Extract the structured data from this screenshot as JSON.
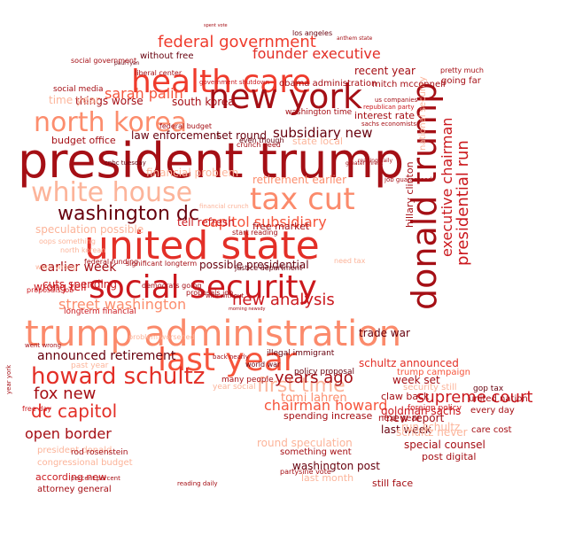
{
  "words": [
    {
      "text": "president trump",
      "color": "#a50f15"
    },
    {
      "text": "trump administration",
      "color": "#fb8a6b"
    },
    {
      "text": "united state",
      "color": "#e32f27"
    },
    {
      "text": "social security",
      "color": "#cb181d"
    },
    {
      "text": "health care",
      "color": "#ef3b2c"
    },
    {
      "text": "new york",
      "color": "#a50f15"
    },
    {
      "text": "donald trump",
      "color": "#a50f15"
    },
    {
      "text": "north korea",
      "color": "#fc8d6d"
    },
    {
      "text": "white house",
      "color": "#fcb49a"
    },
    {
      "text": "tax cut",
      "color": "#fb8a6b"
    },
    {
      "text": "last year",
      "color": "#f6553c"
    },
    {
      "text": "howard schultz",
      "color": "#e32f27"
    },
    {
      "text": "washington dc",
      "color": "#67000d"
    },
    {
      "text": "federal government",
      "color": "#ef3b2c"
    },
    {
      "text": "presidential run",
      "color": "#cb181d"
    },
    {
      "text": "executive chairman",
      "color": "#cb181d"
    },
    {
      "text": "first time",
      "color": "#fcb49a"
    },
    {
      "text": "supreme court",
      "color": "#cb181d"
    },
    {
      "text": "new analysis",
      "color": "#cb181d"
    },
    {
      "text": "capitol subsidiary",
      "color": "#f6553c"
    },
    {
      "text": "sarah palin",
      "color": "#f6553c"
    },
    {
      "text": "founder executive",
      "color": "#e32f27"
    },
    {
      "text": "subsidiary new",
      "color": "#67000d"
    },
    {
      "text": "dc capitol",
      "color": "#e32f27"
    },
    {
      "text": "fox new",
      "color": "#a50f15"
    },
    {
      "text": "open border",
      "color": "#a50f15"
    },
    {
      "text": "years ago",
      "color": "#a50f15"
    },
    {
      "text": "street washington",
      "color": "#fc8d6d"
    },
    {
      "text": "earlier week",
      "color": "#a50f15"
    },
    {
      "text": "announced retirement",
      "color": "#67000d"
    },
    {
      "text": "chairman howard",
      "color": "#f6553c"
    },
    {
      "text": "round speculation",
      "color": "#fcb49a"
    },
    {
      "text": "schultz announced",
      "color": "#e32f27"
    },
    {
      "text": "trade war",
      "color": "#67000d"
    },
    {
      "text": "law enforcement",
      "color": "#67000d"
    },
    {
      "text": "set round",
      "color": "#67000d"
    },
    {
      "text": "retirement earlier",
      "color": "#fc8d6d"
    },
    {
      "text": "possible presidential",
      "color": "#67000d"
    },
    {
      "text": "interest rate",
      "color": "#a50f15"
    },
    {
      "text": "week set",
      "color": "#a50f15"
    },
    {
      "text": "goldman sachs",
      "color": "#cb181d"
    },
    {
      "text": "last week",
      "color": "#67000d"
    },
    {
      "text": "new report",
      "color": "#a50f15"
    },
    {
      "text": "special counsel",
      "color": "#a50f15"
    },
    {
      "text": "washington post",
      "color": "#67000d"
    },
    {
      "text": "spending increase",
      "color": "#a50f15"
    },
    {
      "text": "tomi lahren",
      "color": "#fc8d6d"
    },
    {
      "text": "speculation possible",
      "color": "#fcb49a"
    },
    {
      "text": "cuts spending",
      "color": "#cb181d"
    },
    {
      "text": "wrong tell",
      "color": "#cb181d"
    },
    {
      "text": "tell refresh",
      "color": "#cb181d"
    },
    {
      "text": "financial problem",
      "color": "#fcb49a"
    },
    {
      "text": "free market",
      "color": "#a50f15"
    },
    {
      "text": "recent year",
      "color": "#a50f15"
    },
    {
      "text": "things worse",
      "color": "#a50f15"
    },
    {
      "text": "south korea",
      "color": "#a50f15"
    },
    {
      "text": "state local",
      "color": "#fcb49a"
    },
    {
      "text": "budget office",
      "color": "#a50f15"
    },
    {
      "text": "time year",
      "color": "#fcb49a"
    },
    {
      "text": "claw back",
      "color": "#a50f15"
    },
    {
      "text": "run schultz",
      "color": "#fcb49a"
    },
    {
      "text": "schultz never",
      "color": "#fcb49a"
    },
    {
      "text": "post digital",
      "color": "#a50f15"
    },
    {
      "text": "still face",
      "color": "#a50f15"
    },
    {
      "text": "last month",
      "color": "#fcb49a"
    },
    {
      "text": "something went",
      "color": "#a50f15"
    },
    {
      "text": "according new",
      "color": "#cb181d"
    },
    {
      "text": "congressional budget",
      "color": "#fcb49a"
    },
    {
      "text": "president donald",
      "color": "#fcb49a"
    },
    {
      "text": "rod rosenstein",
      "color": "#a50f15"
    },
    {
      "text": "attorney general",
      "color": "#a50f15"
    },
    {
      "text": "year social",
      "color": "#fcb49a"
    },
    {
      "text": "many people",
      "color": "#a50f15"
    },
    {
      "text": "hillary clinton",
      "color": "#a50f15"
    },
    {
      "text": "national security",
      "color": "#fcb49a"
    },
    {
      "text": "mitch mcconnell",
      "color": "#a50f15"
    },
    {
      "text": "obama administration",
      "color": "#a50f15"
    },
    {
      "text": "los angeles",
      "color": "#67000d"
    },
    {
      "text": "without free",
      "color": "#67000d"
    },
    {
      "text": "social media",
      "color": "#a50f15"
    },
    {
      "text": "washington time",
      "color": "#a50f15"
    },
    {
      "text": "crunch need",
      "color": "#a50f15"
    },
    {
      "text": "even though",
      "color": "#67000d"
    },
    {
      "text": "going far",
      "color": "#a50f15"
    },
    {
      "text": "united nation",
      "color": "#a50f15"
    },
    {
      "text": "every day",
      "color": "#a50f15"
    },
    {
      "text": "care cost",
      "color": "#a50f15"
    },
    {
      "text": "foreign policy",
      "color": "#cb181d"
    },
    {
      "text": "security still",
      "color": "#fcb49a"
    },
    {
      "text": "next year",
      "color": "#a50f15"
    },
    {
      "text": "gop tax",
      "color": "#67000d"
    },
    {
      "text": "illegal immigrant",
      "color": "#67000d"
    },
    {
      "text": "world war",
      "color": "#67000d"
    },
    {
      "text": "policy proposal",
      "color": "#67000d"
    },
    {
      "text": "trump campaign",
      "color": "#f6553c"
    },
    {
      "text": "federal budget",
      "color": "#a50f15"
    },
    {
      "text": "cnbc tuesday",
      "color": "#67000d"
    },
    {
      "text": "percent percent",
      "color": "#a50f15"
    },
    {
      "text": "past year",
      "color": "#fcb49a"
    },
    {
      "text": "proposals job",
      "color": "#cb181d"
    },
    {
      "text": "went wrong",
      "color": "#fcb49a"
    },
    {
      "text": "free day",
      "color": "#cb181d"
    },
    {
      "text": "longterm financial",
      "color": "#cb181d"
    },
    {
      "text": "need tax",
      "color": "#fcb49a"
    },
    {
      "text": "job guaranteed",
      "color": "#a50f15"
    },
    {
      "text": "greater threat",
      "color": "#a50f15"
    },
    {
      "text": "significant longterm",
      "color": "#a50f15"
    },
    {
      "text": "justice department",
      "color": "#67000d"
    },
    {
      "text": "start reading",
      "color": "#a50f15"
    },
    {
      "text": "wire without",
      "color": "#a50f15"
    },
    {
      "text": "morning newsdy",
      "color": "#a50f15"
    },
    {
      "text": "liberal center",
      "color": "#a50f15"
    },
    {
      "text": "pretty much",
      "color": "#a50f15"
    },
    {
      "text": "federal funding",
      "color": "#a50f15"
    },
    {
      "text": "went wrong",
      "color": "#a50f15"
    },
    {
      "text": "problem worsened",
      "color": "#fcb49a"
    },
    {
      "text": "democrats going",
      "color": "#a50f15"
    },
    {
      "text": "reading daily",
      "color": "#a50f15"
    },
    {
      "text": "partysine vote",
      "color": "#a50f15"
    },
    {
      "text": "back nearly",
      "color": "#a50f15"
    },
    {
      "text": "north korean",
      "color": "#fcb49a"
    },
    {
      "text": "year york",
      "color": "#a50f15"
    },
    {
      "text": "oops something",
      "color": "#fcb49a"
    },
    {
      "text": "proposals job",
      "color": "#a50f15"
    },
    {
      "text": "reading daily",
      "color": "#a50f15"
    },
    {
      "text": "financial crunch",
      "color": "#fcb49a"
    },
    {
      "text": "government shutdown",
      "color": "#cb181d"
    },
    {
      "text": "republican party",
      "color": "#cb181d"
    },
    {
      "text": "sachs economists",
      "color": "#a50f15"
    },
    {
      "text": "us companies",
      "color": "#a50f15"
    },
    {
      "text": "spent vote",
      "color": "#a50f15"
    },
    {
      "text": "anthem state",
      "color": "#a50f15"
    },
    {
      "text": "paul ryan",
      "color": "#67000d"
    },
    {
      "text": "social government",
      "color": "#a50f15"
    },
    {
      "text": "public school",
      "color": "#fcb49a"
    }
  ]
}
